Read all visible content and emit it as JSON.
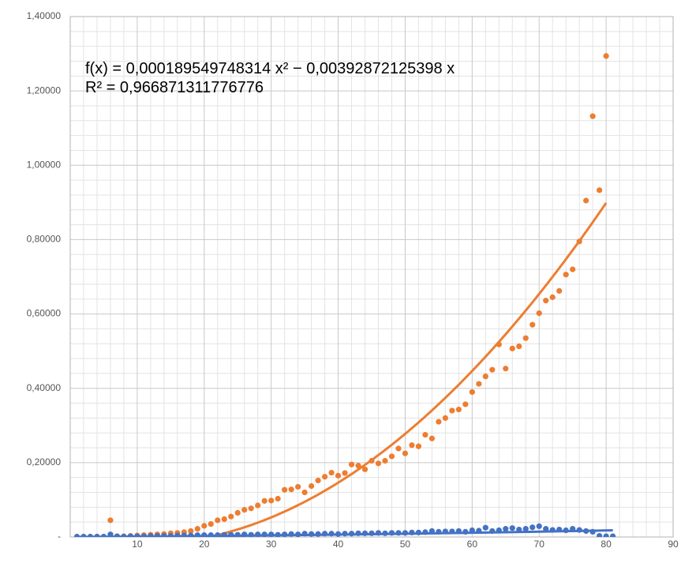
{
  "chart_data": {
    "type": "scatter",
    "annotations": [
      "f(x) = 0,000189549748314 x² − 0,00392872125398 x",
      "R² = 0,966871311776776"
    ],
    "xlim": [
      0,
      90
    ],
    "xticks": [
      10,
      20,
      30,
      40,
      50,
      60,
      70,
      80,
      90
    ],
    "ylim": [
      0,
      1.4
    ],
    "yticks": [
      {
        "value": 0,
        "label": "-"
      },
      {
        "value": 0.2,
        "label": "0,20000"
      },
      {
        "value": 0.4,
        "label": "0,40000"
      },
      {
        "value": 0.6,
        "label": "0,60000"
      },
      {
        "value": 0.8,
        "label": "0,80000"
      },
      {
        "value": 1.0,
        "label": "1,00000"
      },
      {
        "value": 1.2,
        "label": "1,20000"
      },
      {
        "value": 1.4,
        "label": "1,40000"
      }
    ],
    "grid": true,
    "minor_grid_divisions": 5,
    "series": [
      {
        "color": "#ed7d31",
        "x": [
          6,
          7,
          8,
          9,
          10,
          11,
          12,
          13,
          14,
          15,
          16,
          17,
          18,
          19,
          20,
          21,
          22,
          23,
          24,
          25,
          26,
          27,
          28,
          29,
          30,
          31,
          32,
          33,
          34,
          35,
          36,
          37,
          38,
          39,
          40,
          41,
          42,
          43,
          44,
          45,
          46,
          47,
          48,
          49,
          50,
          51,
          52,
          53,
          54,
          55,
          56,
          57,
          58,
          59,
          60,
          61,
          62,
          63,
          64,
          65,
          66,
          67,
          68,
          69,
          70,
          71,
          72,
          73,
          74,
          75,
          76,
          77,
          78,
          79,
          80
        ],
        "values": [
          0.045,
          0.002,
          0.002,
          0.003,
          0.004,
          0.005,
          0.006,
          0.007,
          0.008,
          0.01,
          0.011,
          0.013,
          0.016,
          0.022,
          0.03,
          0.035,
          0.045,
          0.048,
          0.055,
          0.065,
          0.073,
          0.077,
          0.085,
          0.097,
          0.098,
          0.103,
          0.127,
          0.128,
          0.135,
          0.12,
          0.137,
          0.152,
          0.162,
          0.173,
          0.165,
          0.172,
          0.195,
          0.192,
          0.182,
          0.205,
          0.198,
          0.205,
          0.217,
          0.238,
          0.225,
          0.247,
          0.244,
          0.275,
          0.265,
          0.31,
          0.32,
          0.34,
          0.343,
          0.357,
          0.39,
          0.412,
          0.432,
          0.45,
          0.518,
          0.453,
          0.507,
          0.513,
          0.535,
          0.571,
          0.602,
          0.636,
          0.645,
          0.662,
          0.706,
          0.72,
          0.795,
          0.905,
          1.132,
          0.933,
          1.294
        ],
        "trendline": {
          "type": "polynomial",
          "coefficients": [
            0.000189549748314,
            -0.00392872125398
          ],
          "x_range": [
            1,
            80
          ]
        }
      },
      {
        "color": "#4472c4",
        "x": [
          1,
          2,
          3,
          4,
          5,
          6,
          7,
          8,
          9,
          10,
          11,
          12,
          13,
          14,
          15,
          16,
          17,
          18,
          19,
          20,
          21,
          22,
          23,
          24,
          25,
          26,
          27,
          28,
          29,
          30,
          31,
          32,
          33,
          34,
          35,
          36,
          37,
          38,
          39,
          40,
          41,
          42,
          43,
          44,
          45,
          46,
          47,
          48,
          49,
          50,
          51,
          52,
          53,
          54,
          55,
          56,
          57,
          58,
          59,
          60,
          61,
          62,
          63,
          64,
          65,
          66,
          67,
          68,
          69,
          70,
          71,
          72,
          73,
          74,
          75,
          76,
          77,
          78,
          79,
          80,
          81
        ],
        "values": [
          0.001,
          0.001,
          0.001,
          0.001,
          0.001,
          0.007,
          0.002,
          0.001,
          0.002,
          0.002,
          0.002,
          0.003,
          0.003,
          0.003,
          0.003,
          0.004,
          0.004,
          0.004,
          0.005,
          0.005,
          0.005,
          0.005,
          0.006,
          0.006,
          0.006,
          0.007,
          0.006,
          0.007,
          0.007,
          0.007,
          0.006,
          0.007,
          0.008,
          0.007,
          0.009,
          0.008,
          0.008,
          0.009,
          0.009,
          0.008,
          0.009,
          0.009,
          0.01,
          0.01,
          0.01,
          0.011,
          0.01,
          0.011,
          0.011,
          0.011,
          0.012,
          0.012,
          0.013,
          0.016,
          0.014,
          0.015,
          0.015,
          0.016,
          0.014,
          0.018,
          0.017,
          0.025,
          0.016,
          0.018,
          0.022,
          0.024,
          0.02,
          0.022,
          0.026,
          0.029,
          0.022,
          0.019,
          0.02,
          0.018,
          0.022,
          0.019,
          0.016,
          0.014,
          0.003,
          0.002,
          0.002
        ],
        "trendline": {
          "type": "polynomial",
          "coefficients": [
            1.5e-06,
            0.0001
          ],
          "x_range": [
            1,
            81
          ]
        }
      }
    ]
  }
}
